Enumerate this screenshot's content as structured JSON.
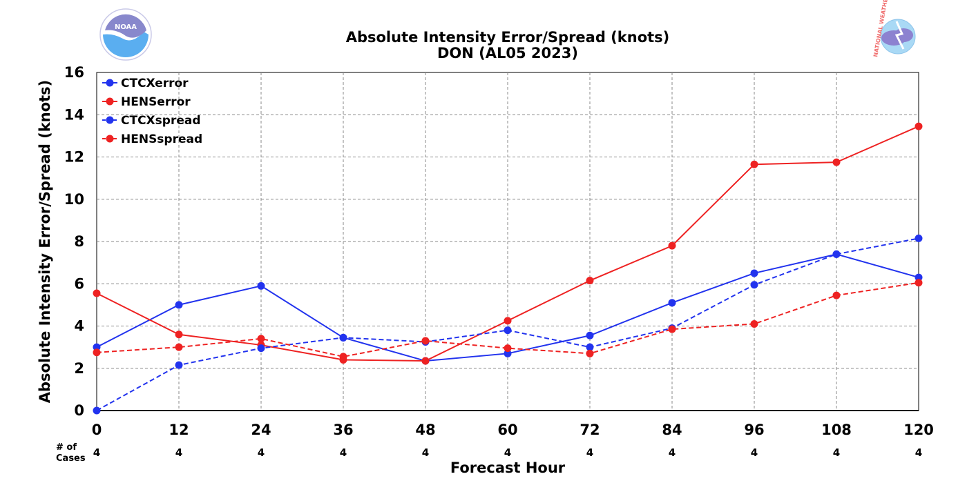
{
  "chart_data": {
    "type": "line",
    "title": "Absolute Intensity Error/Spread (knots)",
    "subtitle": "DON (AL05 2023)",
    "xlabel": "Forecast Hour",
    "ylabel": "Absolute Intensity Error/Spread (knots)",
    "x": [
      0,
      12,
      24,
      36,
      48,
      60,
      72,
      84,
      96,
      108,
      120
    ],
    "x_tick_labels": [
      "0",
      "12",
      "24",
      "36",
      "48",
      "60",
      "72",
      "84",
      "96",
      "108",
      "120"
    ],
    "xlim": [
      0,
      120
    ],
    "ylim": [
      0,
      16
    ],
    "y_ticks": [
      0,
      2,
      4,
      6,
      8,
      10,
      12,
      14,
      16
    ],
    "y_tick_labels": [
      "0",
      "2",
      "4",
      "6",
      "8",
      "10",
      "12",
      "14",
      "16"
    ],
    "grid": true,
    "legend_position": "top-left",
    "cases_label_line1": "# of",
    "cases_label_line2": "Cases",
    "cases": [
      "4",
      "4",
      "4",
      "4",
      "4",
      "4",
      "4",
      "4",
      "4",
      "4",
      "4"
    ],
    "series": [
      {
        "name": "CTCXerror",
        "color": "#2233ee",
        "dashed": false,
        "values": [
          3.0,
          5.0,
          5.9,
          3.45,
          2.35,
          2.7,
          3.55,
          5.1,
          6.5,
          7.4,
          6.3
        ]
      },
      {
        "name": "HENSerror",
        "color": "#ee2222",
        "dashed": false,
        "values": [
          5.55,
          3.6,
          3.1,
          2.4,
          2.35,
          4.25,
          6.15,
          7.8,
          11.65,
          11.75,
          13.45
        ]
      },
      {
        "name": "CTCXspread",
        "color": "#2233ee",
        "dashed": true,
        "values": [
          0.0,
          2.15,
          2.95,
          3.45,
          3.25,
          3.8,
          3.0,
          3.9,
          5.95,
          7.4,
          8.15
        ]
      },
      {
        "name": "HENSspread",
        "color": "#ee2222",
        "dashed": true,
        "values": [
          2.75,
          3.0,
          3.4,
          2.55,
          3.3,
          2.95,
          2.7,
          3.85,
          4.1,
          5.45,
          6.05
        ]
      }
    ]
  },
  "logos": {
    "noaa_text": "NOAA",
    "nws_text": "NATIONAL WEATHER SERVICE"
  }
}
